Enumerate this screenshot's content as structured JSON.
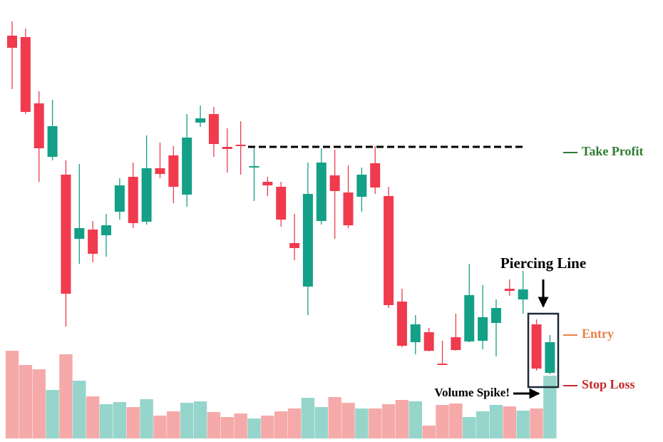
{
  "chart_data": {
    "type": "candlestick",
    "open": [
      570,
      568,
      475,
      400,
      375,
      285,
      298,
      290,
      323,
      372,
      309,
      384,
      402,
      347,
      448,
      460,
      414,
      417,
      385,
      365,
      358,
      279,
      218,
      310,
      374,
      350,
      344,
      391,
      345,
      197,
      140,
      154,
      110,
      147,
      141,
      142,
      167,
      215,
      200,
      165,
      97
    ],
    "high": [
      590,
      580,
      492,
      480,
      395,
      390,
      310,
      320,
      370,
      392,
      430,
      420,
      415,
      460,
      472,
      470,
      440,
      450,
      412,
      372,
      365,
      320,
      392,
      412,
      410,
      388,
      385,
      415,
      358,
      215,
      178,
      160,
      142,
      180,
      250,
      220,
      200,
      228,
      240,
      172,
      150
    ],
    "low": [
      495,
      460,
      365,
      395,
      162,
      250,
      252,
      260,
      312,
      300,
      305,
      370,
      335,
      330,
      442,
      400,
      378,
      375,
      338,
      345,
      302,
      255,
      178,
      305,
      285,
      300,
      323,
      348,
      188,
      133,
      123,
      127,
      108,
      128,
      140,
      130,
      120,
      205,
      180,
      100,
      95
    ],
    "close": [
      553,
      463,
      412,
      443,
      208,
      300,
      264,
      304,
      360,
      307,
      384,
      376,
      358,
      427,
      454,
      418,
      411,
      415,
      387,
      360,
      312,
      272,
      348,
      392,
      352,
      304,
      375,
      357,
      192,
      135,
      165,
      128,
      109,
      129,
      206,
      175,
      188,
      212,
      214,
      103,
      140
    ],
    "volume": [
      123,
      103,
      97,
      68,
      118,
      81,
      59,
      48,
      51,
      44,
      55,
      32,
      38,
      50,
      52,
      37,
      30,
      35,
      28,
      32,
      38,
      42,
      57,
      44,
      58,
      50,
      42,
      42,
      48,
      54,
      52,
      18,
      47,
      49,
      30,
      38,
      47,
      45,
      39,
      42,
      88
    ],
    "up_color": "#13a087",
    "down_color": "#f03a4e",
    "up_volume_color": "#96d5cb",
    "down_volume_color": "#f5a9a9",
    "ylim": [
      0,
      620
    ],
    "take_profit_level": 414,
    "annotations": {
      "take_profit": "Take Profit",
      "entry": "Entry",
      "stop_loss": "Stop Loss",
      "pattern": "Piercing Line",
      "volume_spike": "Volume Spike!"
    }
  }
}
